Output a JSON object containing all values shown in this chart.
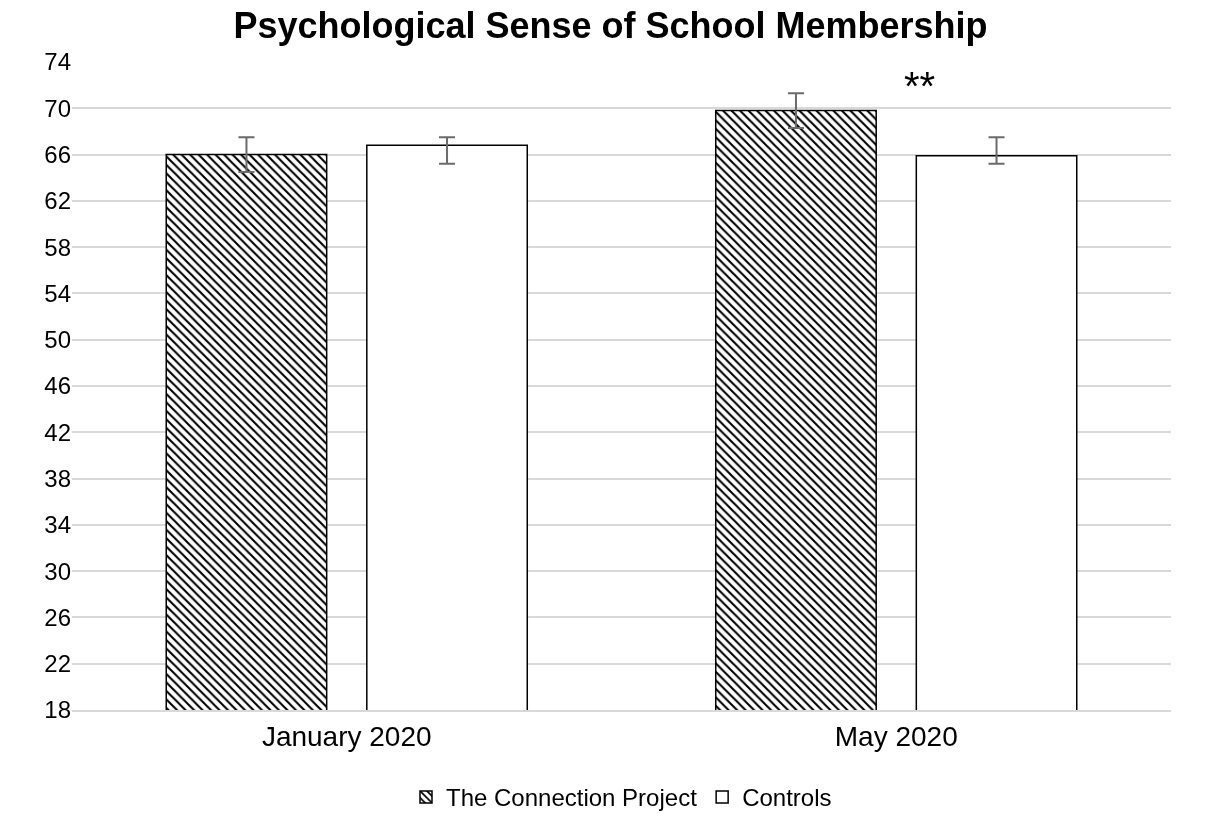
{
  "chart_data": {
    "type": "bar",
    "title": "Psychological Sense of School Membership",
    "categories": [
      "January 2020",
      "May 2020"
    ],
    "series": [
      {
        "name": "The Connection Project",
        "color": "#000000",
        "values": [
          66.0,
          69.8
        ],
        "errors": [
          1.5,
          1.5
        ]
      },
      {
        "name": "Controls",
        "color": "#000000",
        "values": [
          66.8,
          65.9
        ],
        "errors": [
          [
            65.2,
            67.5
          ],
          [
            65.2,
            67.5
          ]
        ]
      }
    ],
    "ylim": [
      18,
      74
    ],
    "yticks": [
      18,
      22,
      26,
      30,
      34,
      38,
      42,
      46,
      50,
      54,
      58,
      62,
      66,
      70,
      74
    ],
    "grid": "y",
    "legend": "bottom",
    "annotations": [
      "**"
    ]
  }
}
